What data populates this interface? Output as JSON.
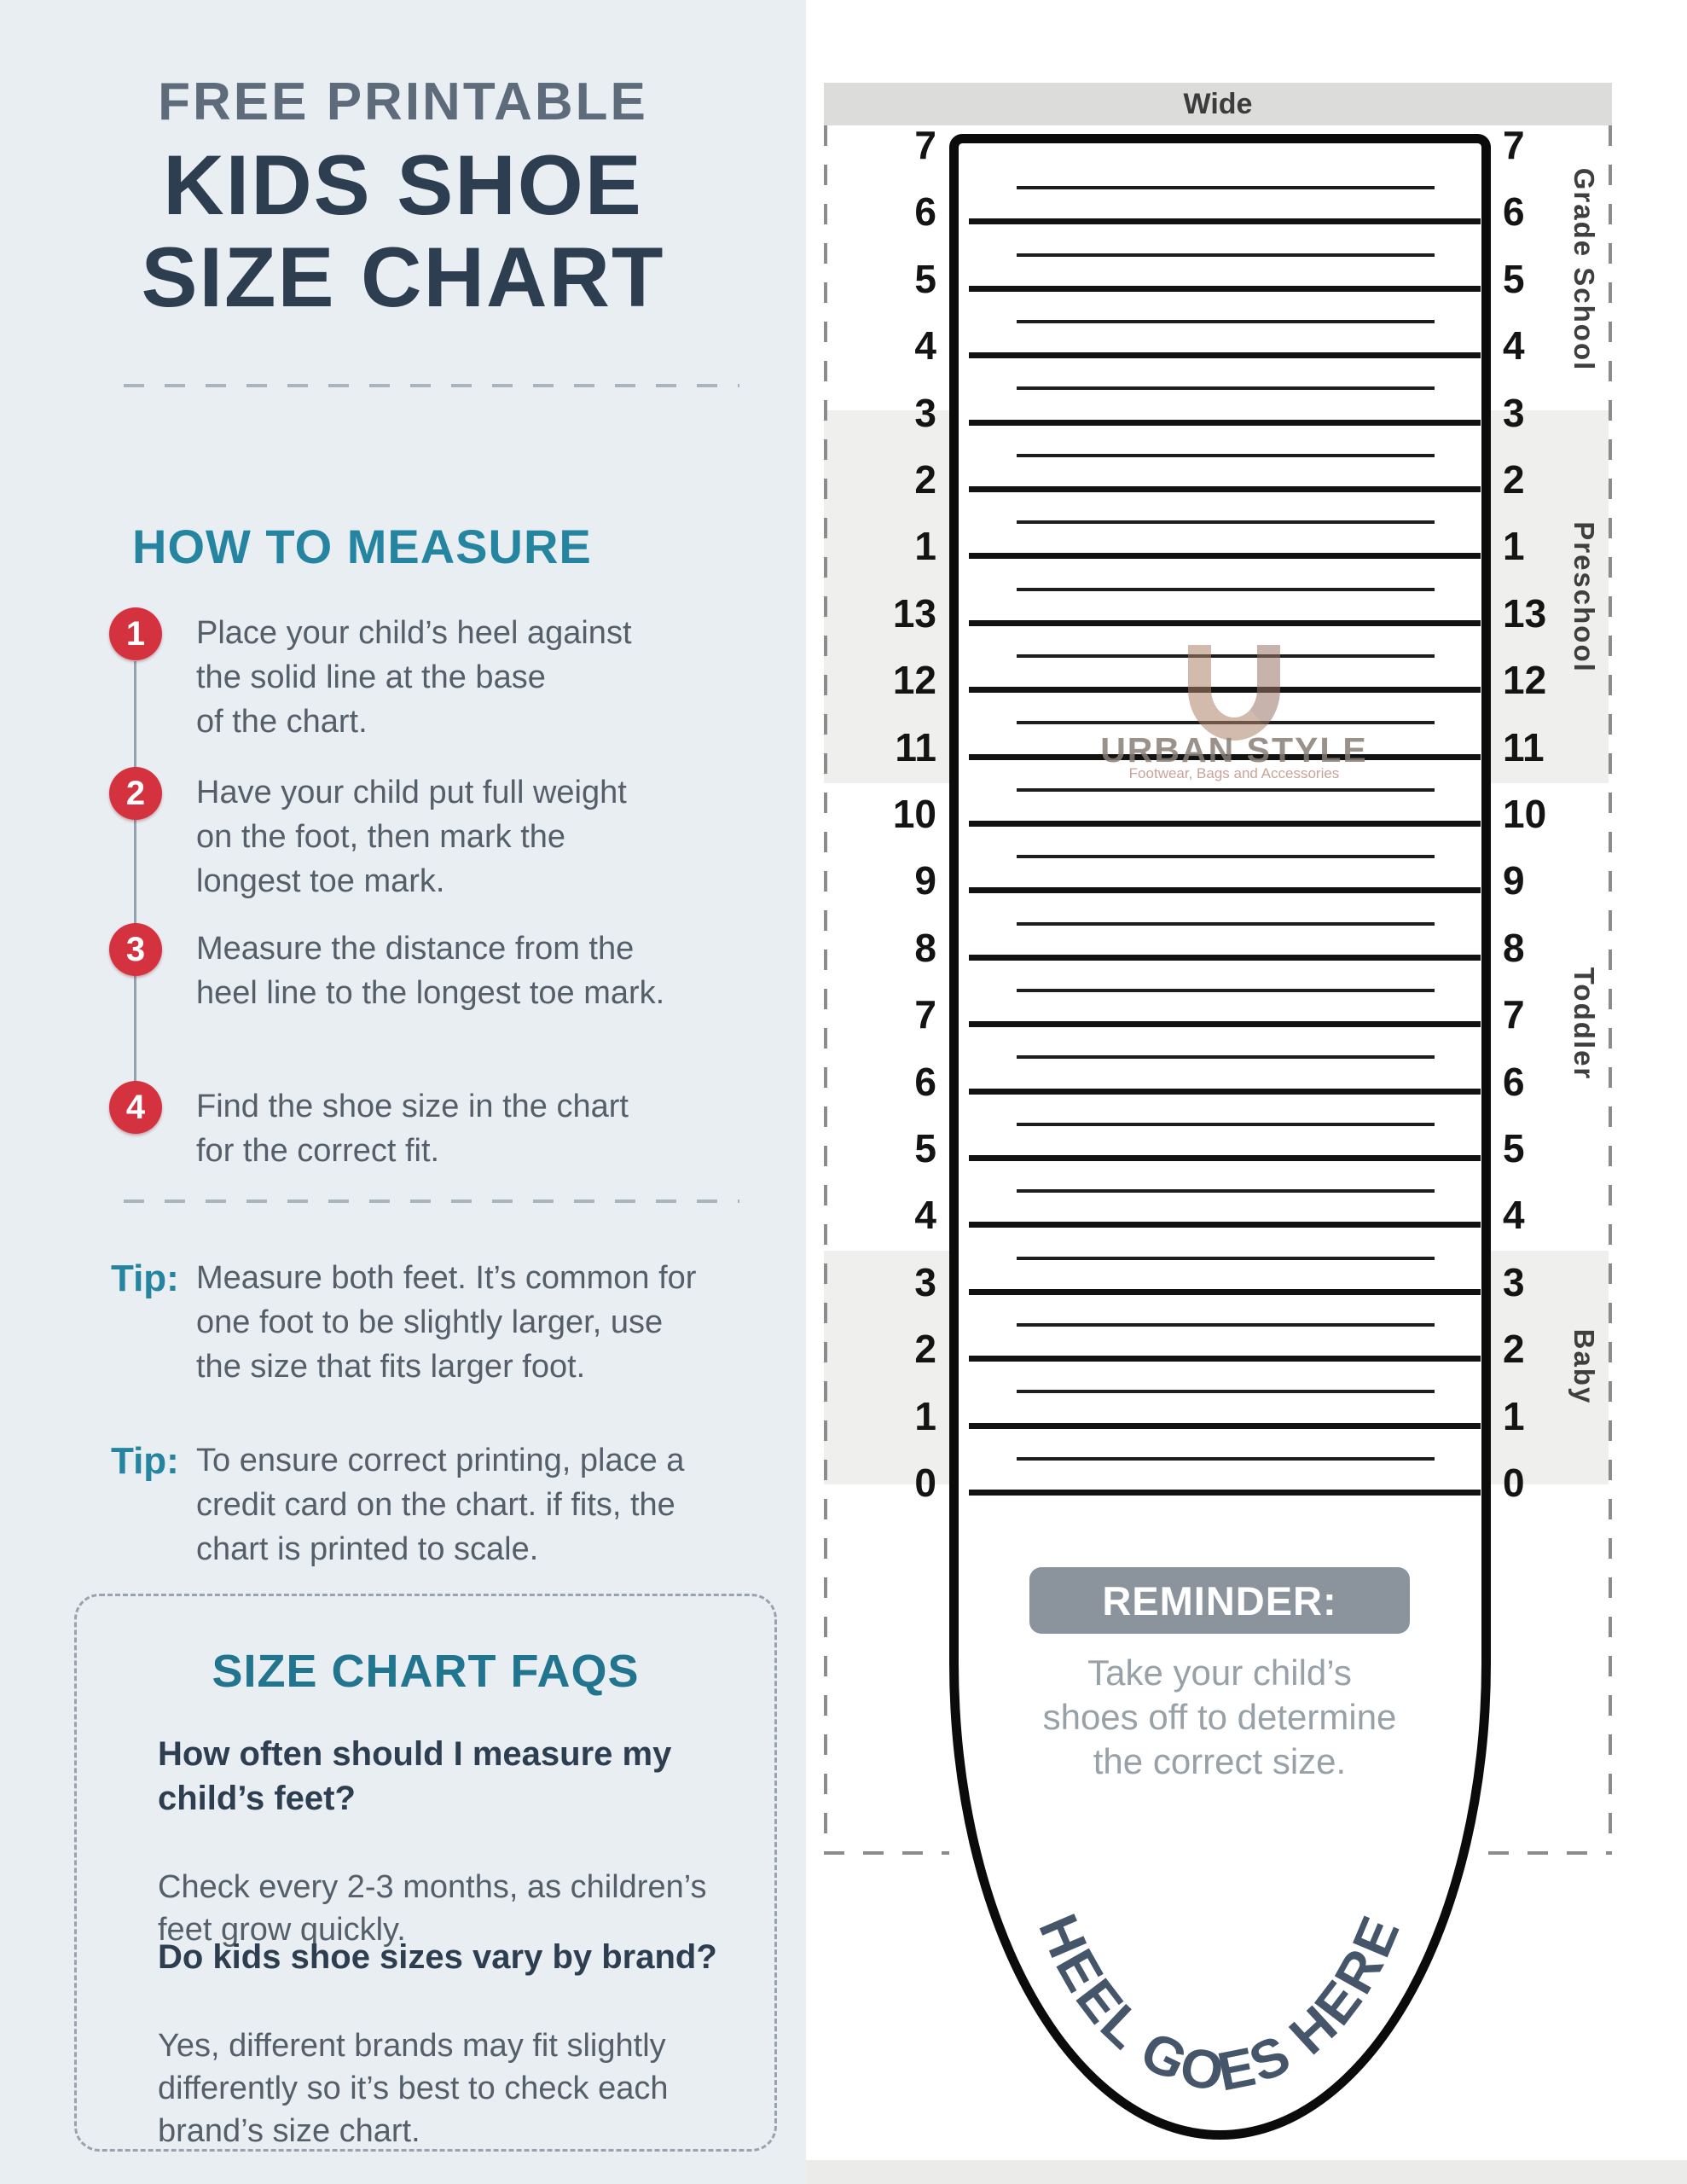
{
  "left_panel": {
    "eyebrow": "FREE PRINTABLE",
    "title_line1": "KIDS SHOE",
    "title_line2": "SIZE CHART",
    "how_to_heading": "HOW TO MEASURE",
    "steps": [
      {
        "num": "1",
        "lines": [
          "Place your child’s heel against",
          "the solid line at the base",
          "of the chart."
        ]
      },
      {
        "num": "2",
        "lines": [
          "Have your child put full weight",
          "on the foot, then mark the",
          "longest toe mark."
        ]
      },
      {
        "num": "3",
        "lines": [
          "Measure the distance from the",
          "heel line to the longest toe mark."
        ]
      },
      {
        "num": "4",
        "lines": [
          "Find the shoe size in the chart",
          "for the correct fit."
        ]
      }
    ],
    "tips": [
      {
        "label": "Tip:",
        "lines": [
          "Measure both feet. It’s common for",
          "one foot to be slightly larger, use",
          "the size that fits larger foot."
        ]
      },
      {
        "label": "Tip:",
        "lines": [
          "To ensure correct printing, place a",
          "credit card on the chart. if fits, the",
          "chart is printed to scale."
        ]
      }
    ],
    "faq": {
      "heading": "SIZE CHART FAQS",
      "items": [
        {
          "q_lines": [
            "How often should I measure my",
            "child’s feet?"
          ],
          "a_lines": [
            "Check every 2-3 months, as children’s",
            "feet grow quickly."
          ]
        },
        {
          "q_lines": [
            "Do kids shoe sizes vary by brand?"
          ],
          "a_lines": [
            "Yes, different brands may fit slightly",
            "differently  so it’s best to check each",
            "brand’s size chart."
          ]
        }
      ]
    }
  },
  "chart": {
    "wide_label": "Wide",
    "sizes": [
      "7",
      "6",
      "5",
      "4",
      "3",
      "2",
      "1",
      "13",
      "12",
      "11",
      "10",
      "9",
      "8",
      "7",
      "6",
      "5",
      "4",
      "3",
      "2",
      "1",
      "0"
    ],
    "groups": [
      {
        "name": "Grade School",
        "shaded": false
      },
      {
        "name": "Preschool",
        "shaded": true
      },
      {
        "name": "Toddler",
        "shaded": false
      },
      {
        "name": "Baby",
        "shaded": true
      }
    ],
    "watermark": {
      "monogram": "U",
      "brand": "URBAN STYLE",
      "tagline": "Footwear, Bags and Accessories"
    },
    "reminder": {
      "title": "REMINDER:",
      "lines": [
        "Take your child’s",
        "shoes off to determine",
        "the correct size."
      ]
    },
    "heel_text": "HEEL GOES HERE"
  },
  "colors": {
    "panel_bg": "#e9eef3",
    "eyebrow": "#5d6b7a",
    "title": "#2d3e50",
    "teal": "#2585a0",
    "step_red": "#d5323f",
    "body_text": "#545f6a",
    "band_gray": "#dcdcdb",
    "group_gray": "#efefee",
    "reminder_bg": "#8b949c",
    "reminder_text": "#98a1a8",
    "heel_text": "#46566a",
    "watermark_tan": "#ad8368",
    "foot_outline": "#0b0b0b"
  }
}
